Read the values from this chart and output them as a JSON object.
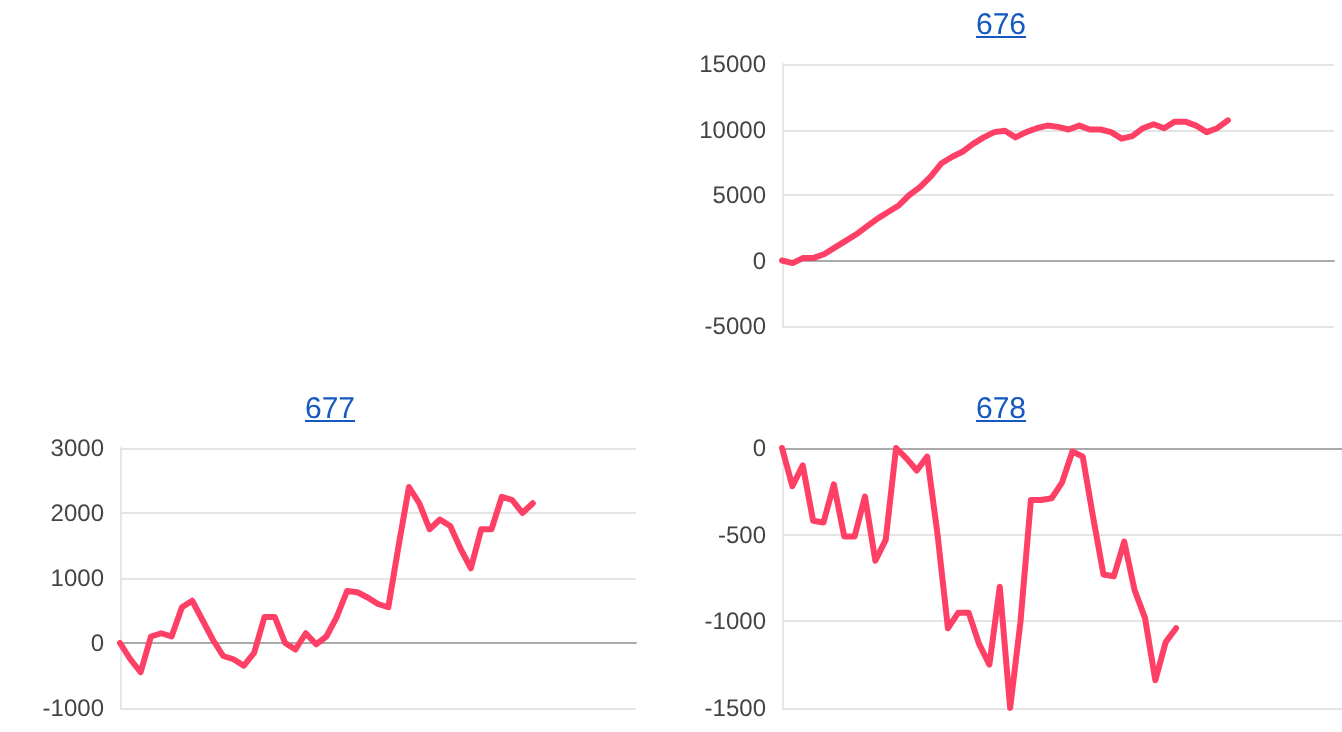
{
  "chart_data": [
    {
      "type": "line",
      "title": "676",
      "categories": [
        null,
        null,
        null,
        null,
        null,
        null,
        null,
        null,
        null,
        null,
        null,
        null,
        null,
        null,
        null,
        null,
        null,
        null,
        null,
        null,
        null,
        null,
        null,
        null,
        null,
        null,
        null,
        null,
        null,
        null,
        null,
        null,
        null,
        null,
        null,
        null,
        null,
        null,
        null,
        null,
        null,
        null,
        null,
        null,
        null,
        null,
        null,
        null,
        null,
        null,
        null,
        null,
        null
      ],
      "series": [
        {
          "color": "#ff4066",
          "values": [
            0,
            -200,
            200,
            200,
            500,
            1000,
            1500,
            2000,
            2600,
            3200,
            3700,
            4200,
            5000,
            5600,
            6400,
            7400,
            7900,
            8300,
            8900,
            9400,
            9800,
            9900,
            9400,
            9800,
            10100,
            10300,
            10200,
            10000,
            10300,
            10000,
            10000,
            9800,
            9300,
            9500,
            10100,
            10400,
            10100,
            10600,
            10600,
            10300,
            9800,
            10100,
            10700,
            null,
            null,
            null,
            null,
            null,
            null,
            null,
            null,
            null,
            null
          ]
        }
      ],
      "ylim": [
        -5000,
        15000
      ],
      "yticks": [
        -5000,
        0,
        5000,
        10000,
        15000
      ],
      "grid": "y",
      "tick_labels": "y",
      "line_style": "solid"
    },
    {
      "type": "line",
      "title": "677",
      "categories": [
        null,
        null,
        null,
        null,
        null,
        null,
        null,
        null,
        null,
        null,
        null,
        null,
        null,
        null,
        null,
        null,
        null,
        null,
        null,
        null,
        null,
        null,
        null,
        null,
        null,
        null,
        null,
        null,
        null,
        null,
        null,
        null,
        null,
        null,
        null,
        null,
        null,
        null,
        null,
        null,
        null,
        null,
        null,
        null,
        null,
        null,
        null,
        null,
        null,
        null,
        null
      ],
      "series": [
        {
          "color": "#ff4066",
          "values": [
            0,
            -250,
            -450,
            100,
            150,
            100,
            550,
            650,
            350,
            50,
            -200,
            -250,
            -350,
            -150,
            400,
            400,
            0,
            -100,
            150,
            -20,
            100,
            400,
            800,
            780,
            700,
            600,
            550,
            1500,
            2400,
            2150,
            1750,
            1900,
            1800,
            1450,
            1150,
            1750,
            1750,
            2250,
            2200,
            2000,
            2150,
            null,
            null,
            null,
            null,
            null,
            null,
            null,
            null,
            null,
            null
          ]
        }
      ],
      "ylim": [
        -1000,
        3000
      ],
      "yticks": [
        -1000,
        0,
        1000,
        2000,
        3000
      ],
      "grid": "y",
      "tick_labels": "y",
      "line_style": "solid"
    },
    {
      "type": "line",
      "title": "678",
      "categories": [
        null,
        null,
        null,
        null,
        null,
        null,
        null,
        null,
        null,
        null,
        null,
        null,
        null,
        null,
        null,
        null,
        null,
        null,
        null,
        null,
        null,
        null,
        null,
        null,
        null,
        null,
        null,
        null,
        null,
        null,
        null,
        null,
        null,
        null,
        null,
        null,
        null,
        null,
        null,
        null,
        null,
        null,
        null,
        null,
        null,
        null,
        null,
        null,
        null,
        null,
        null,
        null,
        null,
        null,
        null
      ],
      "series": [
        {
          "color": "#ff4066",
          "values": [
            0,
            -220,
            -100,
            -420,
            -430,
            -210,
            -510,
            -510,
            -280,
            -650,
            -530,
            0,
            -60,
            -130,
            -50,
            -500,
            -1040,
            -950,
            -950,
            -1130,
            -1250,
            -800,
            -1500,
            -1000,
            -300,
            -300,
            -290,
            -200,
            -20,
            -50,
            -400,
            -730,
            -740,
            -540,
            -820,
            -980,
            -1340,
            -1120,
            -1040,
            null,
            null,
            null,
            null,
            null,
            null,
            null,
            null,
            null,
            null,
            null,
            null,
            null,
            null,
            null,
            null
          ]
        }
      ],
      "ylim": [
        -1500,
        0
      ],
      "yticks": [
        -1500,
        -1000,
        -500,
        0
      ],
      "grid": "y",
      "tick_labels": "y",
      "line_style": "solid"
    }
  ]
}
